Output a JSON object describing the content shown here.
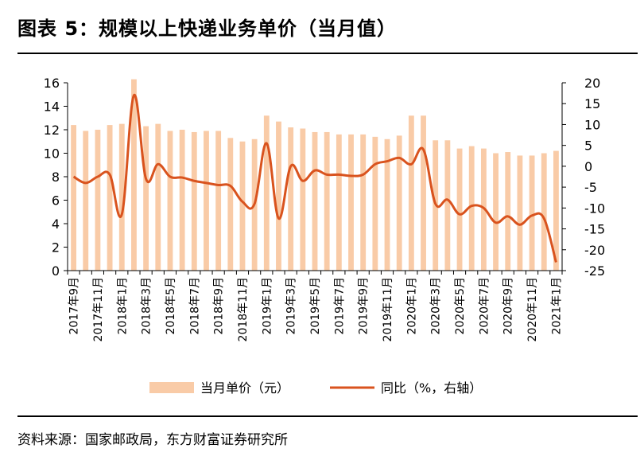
{
  "title": "图表 5：规模以上快递业务单价（当月值）",
  "source": "资料来源：国家邮政局，东方财富证券研究所",
  "chart_data": {
    "type": "bar+line",
    "categories": [
      "2017年9月",
      "2017年10月",
      "2017年11月",
      "2017年12月",
      "2018年1月",
      "2018年2月",
      "2018年3月",
      "2018年4月",
      "2018年5月",
      "2018年6月",
      "2018年7月",
      "2018年8月",
      "2018年9月",
      "2018年10月",
      "2018年11月",
      "2018年12月",
      "2019年1月",
      "2019年2月",
      "2019年3月",
      "2019年4月",
      "2019年5月",
      "2019年6月",
      "2019年7月",
      "2019年8月",
      "2019年9月",
      "2019年10月",
      "2019年11月",
      "2019年12月",
      "2020年1月",
      "2020年2月",
      "2020年3月",
      "2020年4月",
      "2020年5月",
      "2020年6月",
      "2020年7月",
      "2020年8月",
      "2020年9月",
      "2020年10月",
      "2020年11月",
      "2020年12月",
      "2021年1月"
    ],
    "x_tick_labels": [
      "2017年9月",
      "2017年11月",
      "2018年1月",
      "2018年3月",
      "2018年5月",
      "2018年7月",
      "2018年9月",
      "2018年11月",
      "2019年1月",
      "2019年3月",
      "2019年5月",
      "2019年7月",
      "2019年9月",
      "2019年11月",
      "2020年1月",
      "2020年3月",
      "2020年5月",
      "2020年7月",
      "2020年9月",
      "2020年11月",
      "2021年1月"
    ],
    "series": [
      {
        "name": "当月单价（元）",
        "type": "bar",
        "axis": "left",
        "color": "#F9CBA7",
        "values": [
          12.4,
          11.9,
          12.0,
          12.4,
          12.5,
          16.3,
          12.3,
          12.5,
          11.9,
          12.0,
          11.8,
          11.9,
          11.9,
          11.3,
          11.0,
          11.2,
          13.2,
          12.7,
          12.2,
          12.1,
          11.8,
          11.8,
          11.6,
          11.6,
          11.6,
          11.4,
          11.2,
          11.5,
          13.2,
          13.2,
          11.1,
          11.1,
          10.4,
          10.6,
          10.4,
          10.0,
          10.1,
          9.8,
          9.8,
          10.0,
          10.2
        ]
      },
      {
        "name": "同比（%，右轴）",
        "type": "line",
        "axis": "right",
        "color": "#D9531E",
        "values": [
          -2.5,
          -4.0,
          -2.5,
          -2.0,
          -11.5,
          17.0,
          -3.0,
          0.5,
          -2.5,
          -2.7,
          -3.5,
          -4.0,
          -4.5,
          -4.7,
          -8.5,
          -9.0,
          5.5,
          -12.5,
          0.0,
          -3.5,
          -1.0,
          -2.0,
          -2.0,
          -2.3,
          -2.0,
          0.5,
          1.2,
          2.0,
          0.5,
          4.0,
          -9.0,
          -8.0,
          -11.5,
          -9.5,
          -10.0,
          -13.5,
          -12.0,
          -14.0,
          -11.8,
          -12.5,
          -23.0
        ]
      }
    ],
    "y_left": {
      "min": 0,
      "max": 16,
      "ticks": [
        0,
        2,
        4,
        6,
        8,
        10,
        12,
        14,
        16
      ]
    },
    "y_right": {
      "min": -25,
      "max": 20,
      "ticks": [
        -25,
        -20,
        -15,
        -10,
        -5,
        0,
        5,
        10,
        15,
        20
      ]
    },
    "grid": false,
    "legend_position": "bottom"
  }
}
